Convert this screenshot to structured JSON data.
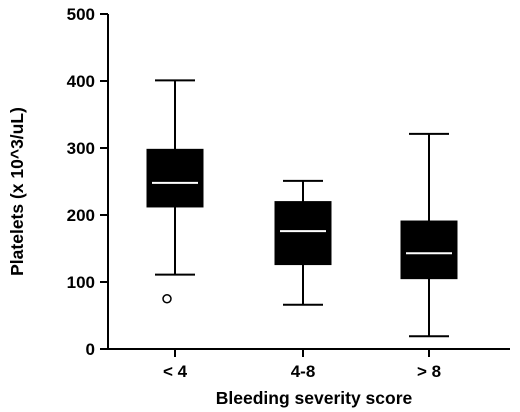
{
  "chart_data": {
    "type": "box",
    "title": "",
    "xlabel": "Bleeding severity score",
    "ylabel": "Platelets (x 10^3/uL)",
    "ylim": [
      0,
      500
    ],
    "yticks": [
      "0",
      "100",
      "200",
      "300",
      "400",
      "500"
    ],
    "categories": [
      "< 4",
      "4-8",
      "> 8"
    ],
    "boxes": [
      {
        "category": "< 4",
        "whisker_low": 111,
        "q1": 212,
        "median": 248,
        "q3": 298,
        "whisker_high": 401,
        "outliers": [
          75
        ]
      },
      {
        "category": "4-8",
        "whisker_low": 66,
        "q1": 126,
        "median": 176,
        "q3": 220,
        "whisker_high": 251,
        "outliers": []
      },
      {
        "category": "> 8",
        "whisker_low": 19,
        "q1": 105,
        "median": 143,
        "q3": 191,
        "whisker_high": 321,
        "outliers": []
      }
    ],
    "colors": {
      "box": "#000000",
      "median": "#ffffff",
      "outlier_fill": "#ffffff"
    },
    "grid": false,
    "legend": "none"
  }
}
